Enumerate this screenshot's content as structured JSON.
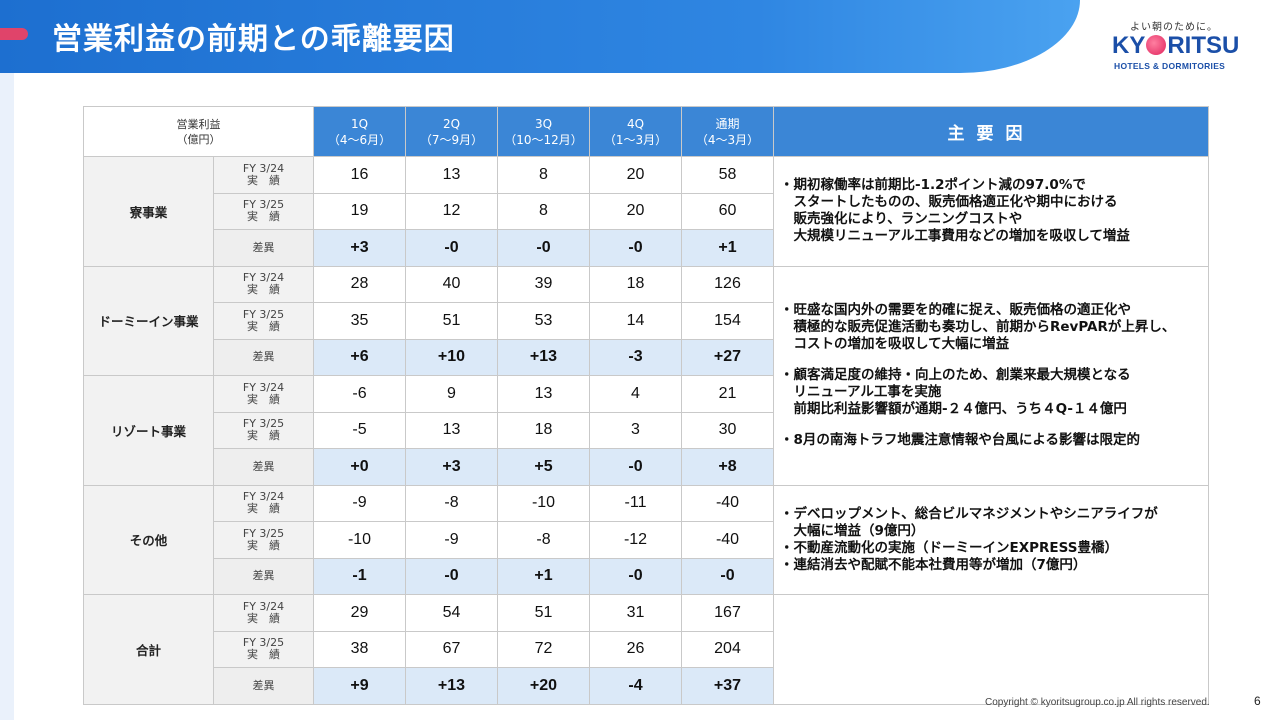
{
  "header": {
    "title": "営業利益の前期との乖離要因"
  },
  "logo": {
    "tagline": "よい朝のために。",
    "brand_before": "KY",
    "brand_after": "RITSU",
    "sub": "HOTELS & DORMITORIES"
  },
  "table": {
    "corner_line1": "営業利益",
    "corner_line2": "（億円）",
    "columns": [
      {
        "q": "1Q",
        "months": "（4～6月）"
      },
      {
        "q": "2Q",
        "months": "（7～9月）"
      },
      {
        "q": "3Q",
        "months": "（10～12月）"
      },
      {
        "q": "4Q",
        "months": "（1～3月）"
      },
      {
        "q": "通期",
        "months": "（4～3月）"
      }
    ],
    "reasons_header": "主要因",
    "row_labels": {
      "fy24_line1": "FY 3/24",
      "fy24_line2": "実　績",
      "fy25_line1": "FY 3/25",
      "fy25_line2": "実　績",
      "diff": "差異"
    },
    "segments": [
      {
        "name": "寮事業",
        "fy24": [
          "16",
          "13",
          "8",
          "20",
          "58"
        ],
        "fy25": [
          "19",
          "12",
          "8",
          "20",
          "60"
        ],
        "diff": [
          "+3",
          "-0",
          "-0",
          "-0",
          "+1"
        ],
        "reasons": [
          "・期初稼働率は前期比-1.2ポイント減の97.0%で",
          "　スタートしたものの、販売価格適正化や期中における",
          "　販売強化により、ランニングコストや",
          "　大規模リニューアル工事費用などの増加を吸収して増益"
        ]
      },
      {
        "name": "ドーミーイン事業",
        "fy24": [
          "28",
          "40",
          "39",
          "18",
          "126"
        ],
        "fy25": [
          "35",
          "51",
          "53",
          "14",
          "154"
        ],
        "diff": [
          "+6",
          "+10",
          "+13",
          "-3",
          "+27"
        ],
        "reasons": []
      },
      {
        "name": "リゾート事業",
        "fy24": [
          "-6",
          "9",
          "13",
          "4",
          "21"
        ],
        "fy25": [
          "-5",
          "13",
          "18",
          "3",
          "30"
        ],
        "diff": [
          "+0",
          "+3",
          "+5",
          "-0",
          "+8"
        ],
        "reasons": []
      },
      {
        "name": "その他",
        "fy24": [
          "-9",
          "-8",
          "-10",
          "-11",
          "-40"
        ],
        "fy25": [
          "-10",
          "-9",
          "-8",
          "-12",
          "-40"
        ],
        "diff": [
          "-1",
          "-0",
          "+1",
          "-0",
          "-0"
        ],
        "reasons": [
          "・デベロップメント、総合ビルマネジメントやシニアライフが",
          "　大幅に増益（9億円）",
          "・不動産流動化の実施（ドーミーインEXPRESS豊橋）",
          "・連結消去や配賦不能本社費用等が増加（7億円）"
        ]
      },
      {
        "name": "合計",
        "fy24": [
          "29",
          "54",
          "51",
          "31",
          "167"
        ],
        "fy25": [
          "38",
          "67",
          "72",
          "26",
          "204"
        ],
        "diff": [
          "+9",
          "+13",
          "+20",
          "-4",
          "+37"
        ],
        "reasons": []
      }
    ],
    "merged_reasons": {
      "block1": [
        "・旺盛な国内外の需要を的確に捉え、販売価格の適正化や",
        "　積極的な販売促進活動も奏功し、前期からRevPARが上昇し、",
        "　コストの増加を吸収して大幅に増益"
      ],
      "block2": [
        "・顧客満足度の維持・向上のため、創業来最大規模となる",
        "　リニューアル工事を実施",
        "　前期比利益影響額が通期-２４億円、うち４Q-１４億円"
      ],
      "block3": [
        "・8月の南海トラフ地震注意情報や台風による影響は限定的"
      ]
    }
  },
  "footer": {
    "copyright": "Copyright © kyoritsugroup.co.jp All rights reserved.",
    "page": "6"
  }
}
